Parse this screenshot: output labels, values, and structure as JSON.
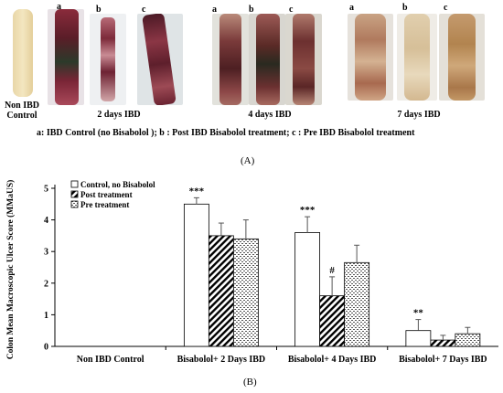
{
  "photo_panel": {
    "groups": [
      {
        "label": "Non IBD Control",
        "letters": [
          "",
          "a"
        ]
      },
      {
        "label": "2 days IBD",
        "letters": [
          "b",
          "c"
        ]
      },
      {
        "label": "4 days IBD",
        "letters": [
          "a",
          "b",
          "c"
        ]
      },
      {
        "label": "7 days IBD",
        "letters": [
          "a",
          "b",
          "c"
        ]
      }
    ],
    "legend": "a:  IBD Control (no Bisabolol );  b : Post IBD Bisabolol treatment;  c : Pre IBD Bisabolol treatment",
    "tag": "(A)"
  },
  "chart_panel": {
    "tag": "(B)"
  },
  "chart_data": {
    "type": "bar",
    "title": "",
    "xlabel": "",
    "ylabel": "Colon Mean Macroscopic Ulcer Score (MMaUS)",
    "ylim": [
      0,
      5
    ],
    "yticks": [
      "0",
      "1",
      "2",
      "3",
      "4",
      "5"
    ],
    "categories": [
      "Non IBD Control",
      "Bisabolol+ 2 Days IBD",
      "Bisabolol+ 4 Days IBD",
      "Bisabolol+ 7 Days IBD"
    ],
    "series": [
      {
        "name": "Control, no Bisabolol",
        "pattern": "white",
        "values": [
          null,
          4.5,
          3.6,
          0.5
        ],
        "errors": [
          null,
          0.2,
          0.5,
          0.35
        ]
      },
      {
        "name": "Post treatment",
        "pattern": "diagonal",
        "values": [
          null,
          3.5,
          1.6,
          0.2
        ],
        "errors": [
          null,
          0.4,
          0.6,
          0.15
        ]
      },
      {
        "name": "Pre treatment",
        "pattern": "dotted",
        "values": [
          null,
          3.4,
          2.65,
          0.4
        ],
        "errors": [
          null,
          0.6,
          0.55,
          0.2
        ]
      }
    ],
    "annotations": [
      {
        "category": 1,
        "series": 0,
        "text": "***"
      },
      {
        "category": 2,
        "series": 0,
        "text": "***"
      },
      {
        "category": 2,
        "series": 1,
        "text": "#"
      },
      {
        "category": 3,
        "series": 0,
        "text": "**"
      }
    ],
    "legend_position": "top-left",
    "grid": false
  }
}
